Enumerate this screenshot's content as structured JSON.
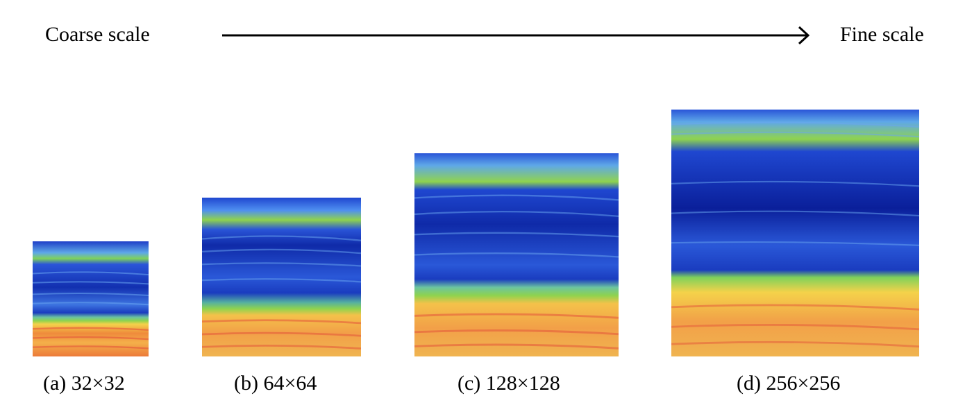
{
  "scale_axis": {
    "start_label": "Coarse scale",
    "end_label": "Fine scale"
  },
  "panels": [
    {
      "caption": "(a) 32×32"
    },
    {
      "caption": "(b) 64×64"
    },
    {
      "caption": "(c) 128×128"
    },
    {
      "caption": "(d) 256×256"
    }
  ],
  "colors": {
    "deep_blue": "#0a1f9a",
    "mid_blue": "#1f47d0",
    "light_blue": "#4f8ff0",
    "green": "#7fd25a",
    "yellow": "#f4d24a",
    "orange": "#f2a048",
    "red": "#e4553a"
  }
}
